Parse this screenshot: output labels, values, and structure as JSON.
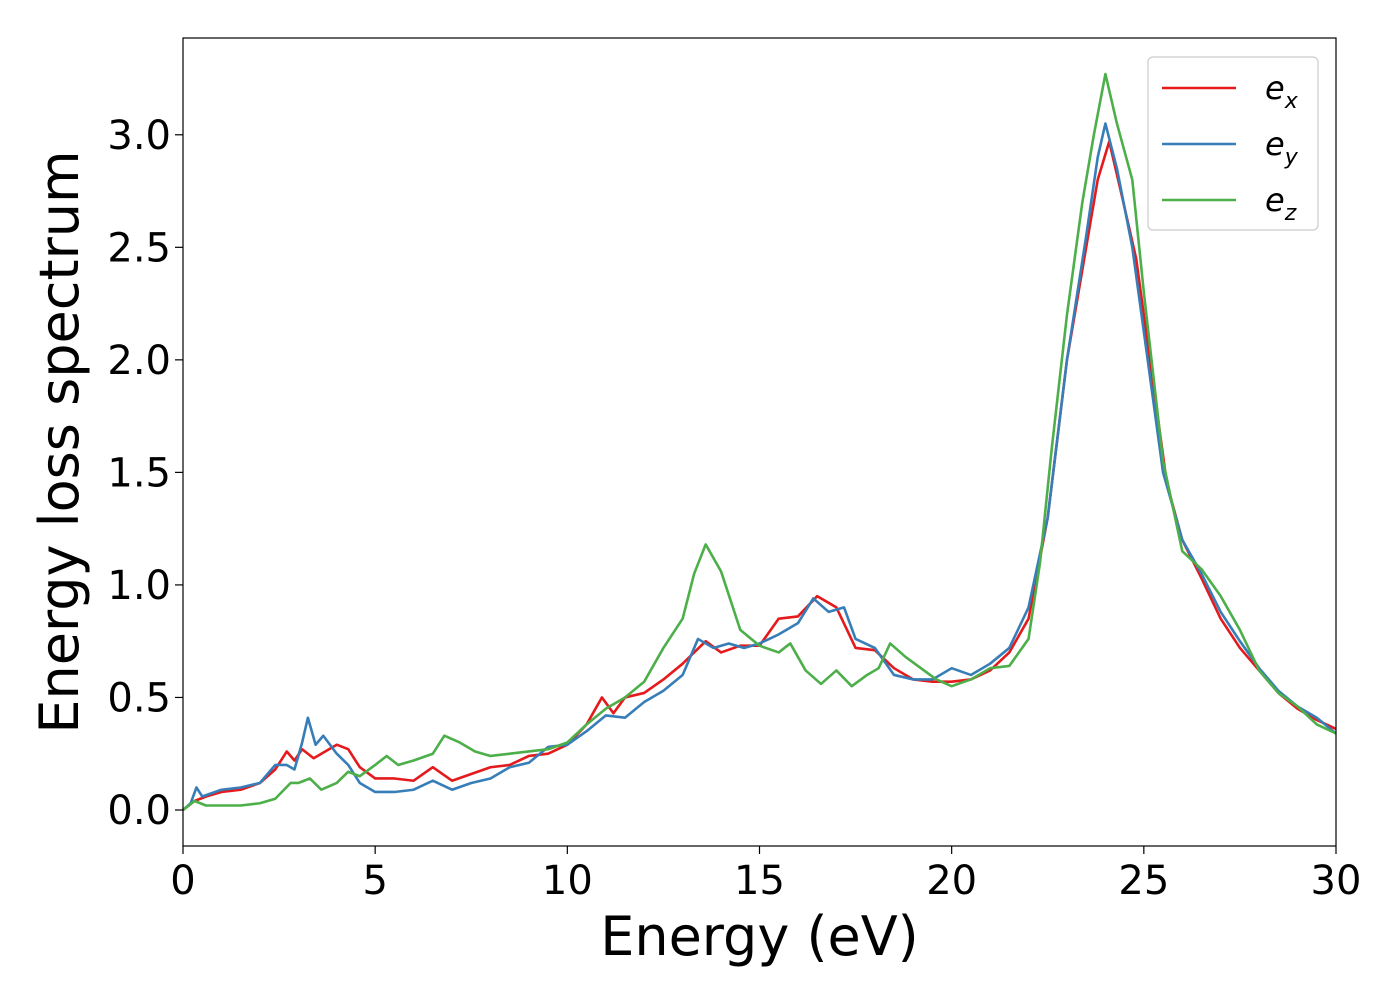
{
  "chart_data": {
    "type": "line",
    "xlabel": "Energy (eV)",
    "ylabel": "Energy loss spectrum",
    "xlim": [
      0,
      30
    ],
    "ylim": [
      -0.16,
      3.43
    ],
    "x_ticks": [
      "0",
      "5",
      "10",
      "15",
      "20",
      "25",
      "30"
    ],
    "y_ticks": [
      "0.0",
      "0.5",
      "1.0",
      "1.5",
      "2.0",
      "2.5",
      "3.0"
    ],
    "grid": false,
    "legend_position": "top-right",
    "series": [
      {
        "name": "e_x",
        "label_base": "e",
        "label_sub": "x",
        "color": "#e41a1c",
        "points": [
          [
            0,
            0
          ],
          [
            0.3,
            0.04
          ],
          [
            0.6,
            0.06
          ],
          [
            1.0,
            0.08
          ],
          [
            1.5,
            0.09
          ],
          [
            2.0,
            0.12
          ],
          [
            2.4,
            0.18
          ],
          [
            2.7,
            0.26
          ],
          [
            2.9,
            0.22
          ],
          [
            3.1,
            0.27
          ],
          [
            3.4,
            0.23
          ],
          [
            3.7,
            0.26
          ],
          [
            4.0,
            0.29
          ],
          [
            4.3,
            0.27
          ],
          [
            4.6,
            0.19
          ],
          [
            5.0,
            0.14
          ],
          [
            5.5,
            0.14
          ],
          [
            6.0,
            0.13
          ],
          [
            6.5,
            0.19
          ],
          [
            7.0,
            0.13
          ],
          [
            7.5,
            0.16
          ],
          [
            8.0,
            0.19
          ],
          [
            8.5,
            0.2
          ],
          [
            9.0,
            0.24
          ],
          [
            9.5,
            0.25
          ],
          [
            10.0,
            0.29
          ],
          [
            10.5,
            0.38
          ],
          [
            10.9,
            0.5
          ],
          [
            11.2,
            0.43
          ],
          [
            11.5,
            0.5
          ],
          [
            12.0,
            0.52
          ],
          [
            12.5,
            0.58
          ],
          [
            13.0,
            0.65
          ],
          [
            13.6,
            0.75
          ],
          [
            14.0,
            0.7
          ],
          [
            14.5,
            0.73
          ],
          [
            15.0,
            0.73
          ],
          [
            15.5,
            0.85
          ],
          [
            16.0,
            0.86
          ],
          [
            16.5,
            0.95
          ],
          [
            17.0,
            0.9
          ],
          [
            17.5,
            0.72
          ],
          [
            18.0,
            0.71
          ],
          [
            18.5,
            0.63
          ],
          [
            19.0,
            0.58
          ],
          [
            19.5,
            0.57
          ],
          [
            20.0,
            0.57
          ],
          [
            20.5,
            0.58
          ],
          [
            21.0,
            0.62
          ],
          [
            21.5,
            0.7
          ],
          [
            22.0,
            0.85
          ],
          [
            22.5,
            1.3
          ],
          [
            23.0,
            2.0
          ],
          [
            23.5,
            2.5
          ],
          [
            23.8,
            2.8
          ],
          [
            24.1,
            2.97
          ],
          [
            24.4,
            2.75
          ],
          [
            24.8,
            2.45
          ],
          [
            25.2,
            1.95
          ],
          [
            25.6,
            1.45
          ],
          [
            26.0,
            1.2
          ],
          [
            26.5,
            1.03
          ],
          [
            27.0,
            0.85
          ],
          [
            27.5,
            0.72
          ],
          [
            28.0,
            0.62
          ],
          [
            28.5,
            0.52
          ],
          [
            29.0,
            0.45
          ],
          [
            29.5,
            0.4
          ],
          [
            30.0,
            0.36
          ]
        ]
      },
      {
        "name": "e_y",
        "label_base": "e",
        "label_sub": "y",
        "color": "#377eb8",
        "points": [
          [
            0,
            0
          ],
          [
            0.2,
            0.03
          ],
          [
            0.35,
            0.1
          ],
          [
            0.5,
            0.06
          ],
          [
            1.0,
            0.09
          ],
          [
            1.5,
            0.1
          ],
          [
            2.0,
            0.12
          ],
          [
            2.4,
            0.2
          ],
          [
            2.7,
            0.2
          ],
          [
            2.9,
            0.18
          ],
          [
            3.1,
            0.3
          ],
          [
            3.25,
            0.41
          ],
          [
            3.45,
            0.29
          ],
          [
            3.65,
            0.33
          ],
          [
            4.0,
            0.25
          ],
          [
            4.3,
            0.2
          ],
          [
            4.6,
            0.12
          ],
          [
            5.0,
            0.08
          ],
          [
            5.5,
            0.08
          ],
          [
            6.0,
            0.09
          ],
          [
            6.5,
            0.13
          ],
          [
            7.0,
            0.09
          ],
          [
            7.5,
            0.12
          ],
          [
            8.0,
            0.14
          ],
          [
            8.5,
            0.19
          ],
          [
            9.0,
            0.21
          ],
          [
            9.5,
            0.28
          ],
          [
            10.0,
            0.29
          ],
          [
            10.5,
            0.35
          ],
          [
            11.0,
            0.42
          ],
          [
            11.5,
            0.41
          ],
          [
            12.0,
            0.48
          ],
          [
            12.5,
            0.53
          ],
          [
            13.0,
            0.6
          ],
          [
            13.4,
            0.76
          ],
          [
            13.8,
            0.72
          ],
          [
            14.2,
            0.74
          ],
          [
            14.6,
            0.72
          ],
          [
            15.0,
            0.74
          ],
          [
            15.5,
            0.78
          ],
          [
            16.0,
            0.83
          ],
          [
            16.4,
            0.94
          ],
          [
            16.8,
            0.88
          ],
          [
            17.2,
            0.9
          ],
          [
            17.5,
            0.76
          ],
          [
            18.0,
            0.72
          ],
          [
            18.5,
            0.6
          ],
          [
            19.0,
            0.58
          ],
          [
            19.5,
            0.58
          ],
          [
            20.0,
            0.63
          ],
          [
            20.5,
            0.6
          ],
          [
            21.0,
            0.65
          ],
          [
            21.5,
            0.72
          ],
          [
            22.0,
            0.9
          ],
          [
            22.5,
            1.3
          ],
          [
            23.0,
            2.0
          ],
          [
            23.5,
            2.55
          ],
          [
            23.8,
            2.9
          ],
          [
            24.0,
            3.05
          ],
          [
            24.3,
            2.85
          ],
          [
            24.7,
            2.5
          ],
          [
            25.1,
            2.0
          ],
          [
            25.5,
            1.5
          ],
          [
            26.0,
            1.2
          ],
          [
            26.5,
            1.05
          ],
          [
            27.0,
            0.88
          ],
          [
            27.5,
            0.75
          ],
          [
            28.0,
            0.63
          ],
          [
            28.5,
            0.53
          ],
          [
            29.0,
            0.46
          ],
          [
            29.5,
            0.41
          ],
          [
            30.0,
            0.34
          ]
        ]
      },
      {
        "name": "e_z",
        "label_base": "e",
        "label_sub": "z",
        "color": "#4daf4a",
        "points": [
          [
            0,
            0
          ],
          [
            0.3,
            0.04
          ],
          [
            0.6,
            0.02
          ],
          [
            1.0,
            0.02
          ],
          [
            1.5,
            0.02
          ],
          [
            2.0,
            0.03
          ],
          [
            2.4,
            0.05
          ],
          [
            2.8,
            0.12
          ],
          [
            3.0,
            0.12
          ],
          [
            3.3,
            0.14
          ],
          [
            3.6,
            0.09
          ],
          [
            4.0,
            0.12
          ],
          [
            4.3,
            0.17
          ],
          [
            4.6,
            0.15
          ],
          [
            5.0,
            0.2
          ],
          [
            5.3,
            0.24
          ],
          [
            5.6,
            0.2
          ],
          [
            6.0,
            0.22
          ],
          [
            6.5,
            0.25
          ],
          [
            6.8,
            0.33
          ],
          [
            7.2,
            0.3
          ],
          [
            7.6,
            0.26
          ],
          [
            8.0,
            0.24
          ],
          [
            8.5,
            0.25
          ],
          [
            9.0,
            0.26
          ],
          [
            9.5,
            0.27
          ],
          [
            10.0,
            0.3
          ],
          [
            10.5,
            0.38
          ],
          [
            11.0,
            0.45
          ],
          [
            11.5,
            0.5
          ],
          [
            12.0,
            0.57
          ],
          [
            12.5,
            0.72
          ],
          [
            13.0,
            0.85
          ],
          [
            13.3,
            1.05
          ],
          [
            13.6,
            1.18
          ],
          [
            14.0,
            1.06
          ],
          [
            14.5,
            0.8
          ],
          [
            15.0,
            0.73
          ],
          [
            15.5,
            0.7
          ],
          [
            15.8,
            0.74
          ],
          [
            16.2,
            0.62
          ],
          [
            16.6,
            0.56
          ],
          [
            17.0,
            0.62
          ],
          [
            17.4,
            0.55
          ],
          [
            17.8,
            0.6
          ],
          [
            18.1,
            0.63
          ],
          [
            18.4,
            0.74
          ],
          [
            18.8,
            0.68
          ],
          [
            19.2,
            0.63
          ],
          [
            19.6,
            0.58
          ],
          [
            20.0,
            0.55
          ],
          [
            20.5,
            0.58
          ],
          [
            21.0,
            0.63
          ],
          [
            21.5,
            0.64
          ],
          [
            22.0,
            0.76
          ],
          [
            22.3,
            1.1
          ],
          [
            22.6,
            1.6
          ],
          [
            23.0,
            2.2
          ],
          [
            23.4,
            2.7
          ],
          [
            23.7,
            3.0
          ],
          [
            24.0,
            3.27
          ],
          [
            24.3,
            3.05
          ],
          [
            24.7,
            2.8
          ],
          [
            25.0,
            2.3
          ],
          [
            25.5,
            1.55
          ],
          [
            26.0,
            1.15
          ],
          [
            26.5,
            1.07
          ],
          [
            27.0,
            0.95
          ],
          [
            27.5,
            0.8
          ],
          [
            28.0,
            0.62
          ],
          [
            28.5,
            0.52
          ],
          [
            29.0,
            0.46
          ],
          [
            29.5,
            0.38
          ],
          [
            30.0,
            0.34
          ]
        ]
      }
    ]
  }
}
